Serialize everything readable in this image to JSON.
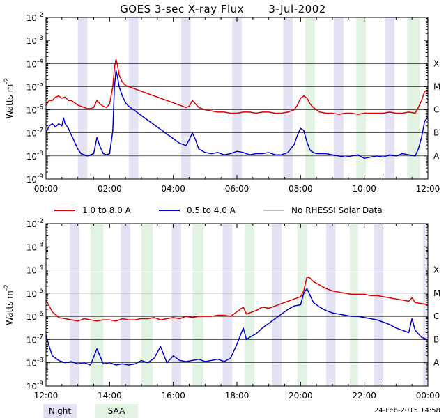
{
  "title": "GOES 3-sec X-ray Flux",
  "date": "3-Jul-2002",
  "timestamp": "24-Feb-2015 14:58",
  "colors": {
    "long": "#dd0000",
    "short": "#0000cc",
    "no_data": "#888888",
    "night": "#e3e3f3",
    "saa": "#e3f3e3",
    "grid": "#000000"
  },
  "legend": {
    "long": "1.0 to 8.0 A",
    "short": "0.5 to 4.0 A",
    "no_data": "No RHESSI Solar Data"
  },
  "bottom_legend": {
    "night": "Night",
    "saa": "SAA"
  },
  "chart_data": [
    {
      "type": "line",
      "panel": "morning",
      "title": "GOES 3-sec X-ray Flux 3-Jul-2002",
      "ylabel": "Watts m-2",
      "yscale": "log",
      "ylim_exp": [
        -9,
        -2
      ],
      "xlim_hours": [
        0,
        12
      ],
      "x_ticks": [
        "00:00",
        "02:00",
        "04:00",
        "06:00",
        "08:00",
        "10:00",
        "12:00"
      ],
      "y_ticks": [
        {
          "base": "10",
          "exp": "-9"
        },
        {
          "base": "10",
          "exp": "-8"
        },
        {
          "base": "10",
          "exp": "-7"
        },
        {
          "base": "10",
          "exp": "-6"
        },
        {
          "base": "10",
          "exp": "-5"
        },
        {
          "base": "10",
          "exp": "-4"
        },
        {
          "base": "10",
          "exp": "-3"
        },
        {
          "base": "10",
          "exp": "-2"
        }
      ],
      "flare_classes": [
        {
          "label": "A",
          "exp": -8
        },
        {
          "label": "B",
          "exp": -7
        },
        {
          "label": "C",
          "exp": -6
        },
        {
          "label": "M",
          "exp": -5
        },
        {
          "label": "X",
          "exp": -4
        }
      ],
      "night": [
        [
          1.0,
          1.3
        ],
        [
          2.6,
          2.9
        ],
        [
          4.25,
          4.55
        ],
        [
          5.85,
          6.15
        ],
        [
          7.45,
          7.75
        ],
        [
          9.05,
          9.35
        ],
        [
          10.65,
          10.95
        ]
      ],
      "saa": [
        [
          8.15,
          8.45
        ],
        [
          9.75,
          10.05
        ],
        [
          11.35,
          11.75
        ]
      ],
      "series": [
        {
          "name": "1.0 to 8.0 A",
          "key": "long",
          "x": [
            0.0,
            0.1,
            0.2,
            0.3,
            0.4,
            0.5,
            0.6,
            0.7,
            0.8,
            0.9,
            1.0,
            1.1,
            1.2,
            1.3,
            1.4,
            1.5,
            1.6,
            1.7,
            1.8,
            1.9,
            2.0,
            2.1,
            2.15,
            2.2,
            2.25,
            2.3,
            2.4,
            2.5,
            2.6,
            2.7,
            2.8,
            3.0,
            3.2,
            3.4,
            3.6,
            3.8,
            4.0,
            4.2,
            4.4,
            4.5,
            4.6,
            4.7,
            4.8,
            5.0,
            5.2,
            5.4,
            5.6,
            5.8,
            6.0,
            6.2,
            6.4,
            6.6,
            6.8,
            7.0,
            7.2,
            7.4,
            7.6,
            7.8,
            7.9,
            8.0,
            8.1,
            8.2,
            8.3,
            8.4,
            8.5,
            8.6,
            8.8,
            9.0,
            9.2,
            9.4,
            9.6,
            9.8,
            10.0,
            10.2,
            10.4,
            10.6,
            10.8,
            11.0,
            11.2,
            11.4,
            11.6,
            11.7,
            11.8,
            11.9,
            12.0
          ],
          "values_exp": [
            -5.8,
            -5.6,
            -5.6,
            -5.45,
            -5.4,
            -5.5,
            -5.45,
            -5.6,
            -5.6,
            -5.7,
            -5.8,
            -5.85,
            -5.9,
            -5.95,
            -5.95,
            -5.9,
            -5.6,
            -5.75,
            -5.85,
            -5.9,
            -5.75,
            -5.0,
            -4.2,
            -3.8,
            -4.1,
            -4.5,
            -4.8,
            -4.95,
            -5.0,
            -5.05,
            -5.1,
            -5.2,
            -5.3,
            -5.4,
            -5.5,
            -5.6,
            -5.7,
            -5.8,
            -5.9,
            -5.85,
            -5.6,
            -5.75,
            -5.9,
            -6.0,
            -6.05,
            -6.1,
            -6.1,
            -6.15,
            -6.15,
            -6.1,
            -6.1,
            -6.15,
            -6.1,
            -6.1,
            -6.15,
            -6.15,
            -6.1,
            -6.0,
            -5.8,
            -5.5,
            -5.4,
            -5.5,
            -5.75,
            -5.9,
            -6.0,
            -6.1,
            -6.15,
            -6.15,
            -6.2,
            -6.15,
            -6.15,
            -6.2,
            -6.15,
            -6.15,
            -6.15,
            -6.15,
            -6.1,
            -6.15,
            -6.15,
            -6.1,
            -6.15,
            -5.9,
            -5.6,
            -5.2,
            -5.15
          ]
        },
        {
          "name": "0.5 to 4.0 A",
          "key": "short",
          "x": [
            0.0,
            0.1,
            0.2,
            0.3,
            0.4,
            0.5,
            0.55,
            0.6,
            0.7,
            0.8,
            0.9,
            1.0,
            1.1,
            1.2,
            1.3,
            1.4,
            1.5,
            1.6,
            1.7,
            1.8,
            1.9,
            2.0,
            2.1,
            2.15,
            2.2,
            2.25,
            2.3,
            2.4,
            2.5,
            2.6,
            2.7,
            2.8,
            3.0,
            3.2,
            3.4,
            3.6,
            3.8,
            4.0,
            4.2,
            4.4,
            4.5,
            4.6,
            4.7,
            4.8,
            5.0,
            5.2,
            5.4,
            5.6,
            5.8,
            6.0,
            6.2,
            6.4,
            6.6,
            6.8,
            7.0,
            7.2,
            7.4,
            7.6,
            7.8,
            7.9,
            8.0,
            8.1,
            8.2,
            8.3,
            8.4,
            8.5,
            8.6,
            8.8,
            9.0,
            9.2,
            9.4,
            9.6,
            9.8,
            10.0,
            10.2,
            10.4,
            10.6,
            10.8,
            11.0,
            11.2,
            11.4,
            11.6,
            11.7,
            11.8,
            11.9,
            12.0
          ],
          "values_exp": [
            -7.0,
            -6.7,
            -6.6,
            -6.75,
            -6.6,
            -6.7,
            -6.35,
            -6.6,
            -6.8,
            -7.1,
            -7.4,
            -7.7,
            -7.9,
            -7.95,
            -8.0,
            -7.95,
            -7.9,
            -7.2,
            -7.6,
            -7.9,
            -7.95,
            -7.9,
            -6.9,
            -5.0,
            -4.3,
            -4.6,
            -5.0,
            -5.4,
            -5.7,
            -5.85,
            -5.95,
            -6.05,
            -6.25,
            -6.45,
            -6.65,
            -6.85,
            -7.05,
            -7.25,
            -7.45,
            -7.55,
            -7.3,
            -7.0,
            -7.3,
            -7.7,
            -7.85,
            -7.9,
            -7.85,
            -7.95,
            -7.9,
            -7.8,
            -7.85,
            -7.95,
            -7.9,
            -7.9,
            -7.85,
            -7.95,
            -7.95,
            -7.85,
            -7.5,
            -7.1,
            -6.8,
            -6.9,
            -7.4,
            -7.75,
            -7.85,
            -7.9,
            -7.9,
            -7.9,
            -7.95,
            -8.0,
            -8.05,
            -8.0,
            -7.95,
            -8.1,
            -8.05,
            -8.0,
            -8.05,
            -7.95,
            -8.0,
            -7.9,
            -7.95,
            -8.0,
            -7.7,
            -7.2,
            -6.5,
            -6.3
          ]
        }
      ]
    },
    {
      "type": "line",
      "panel": "afternoon",
      "ylabel": "Watts m-2",
      "yscale": "log",
      "ylim_exp": [
        -9,
        -2
      ],
      "xlim_hours": [
        12,
        24
      ],
      "x_ticks": [
        "12:00",
        "14:00",
        "16:00",
        "18:00",
        "20:00",
        "22:00",
        "00:00"
      ],
      "y_ticks": [
        {
          "base": "10",
          "exp": "-9"
        },
        {
          "base": "10",
          "exp": "-8"
        },
        {
          "base": "10",
          "exp": "-7"
        },
        {
          "base": "10",
          "exp": "-6"
        },
        {
          "base": "10",
          "exp": "-5"
        },
        {
          "base": "10",
          "exp": "-4"
        },
        {
          "base": "10",
          "exp": "-3"
        },
        {
          "base": "10",
          "exp": "-2"
        }
      ],
      "flare_classes": [
        {
          "label": "A",
          "exp": -8
        },
        {
          "label": "B",
          "exp": -7
        },
        {
          "label": "C",
          "exp": -6
        },
        {
          "label": "M",
          "exp": -5
        },
        {
          "label": "X",
          "exp": -4
        }
      ],
      "night": [
        [
          12.75,
          13.05
        ],
        [
          14.35,
          14.65
        ],
        [
          15.95,
          16.25
        ],
        [
          17.55,
          17.85
        ],
        [
          19.1,
          19.4
        ],
        [
          20.8,
          21.1
        ],
        [
          22.3,
          22.6
        ],
        [
          23.85,
          24.0
        ]
      ],
      "saa": [
        [
          13.4,
          13.8
        ],
        [
          15.0,
          15.35
        ],
        [
          16.6,
          16.95
        ],
        [
          18.25,
          18.55
        ],
        [
          19.9,
          20.2
        ],
        [
          21.55,
          21.8
        ]
      ],
      "series": [
        {
          "name": "1.0 to 8.0 A",
          "key": "long",
          "x": [
            12.0,
            12.1,
            12.2,
            12.4,
            12.6,
            12.8,
            13.0,
            13.2,
            13.4,
            13.6,
            13.8,
            14.0,
            14.2,
            14.4,
            14.6,
            14.8,
            15.0,
            15.2,
            15.4,
            15.6,
            15.8,
            16.0,
            16.2,
            16.4,
            16.6,
            16.8,
            17.0,
            17.2,
            17.4,
            17.6,
            17.8,
            18.0,
            18.2,
            18.3,
            18.4,
            18.6,
            18.8,
            19.0,
            19.2,
            19.4,
            19.6,
            19.8,
            20.0,
            20.1,
            20.2,
            20.3,
            20.4,
            20.6,
            20.8,
            21.0,
            21.2,
            21.4,
            21.6,
            21.8,
            22.0,
            22.2,
            22.4,
            22.6,
            22.8,
            23.0,
            23.2,
            23.4,
            23.5,
            23.6,
            23.8,
            24.0
          ],
          "values_exp": [
            -5.3,
            -5.55,
            -5.8,
            -6.05,
            -6.1,
            -6.15,
            -6.2,
            -6.1,
            -6.15,
            -6.2,
            -6.15,
            -6.15,
            -6.2,
            -6.1,
            -6.15,
            -6.15,
            -6.1,
            -6.1,
            -6.05,
            -6.15,
            -6.1,
            -6.05,
            -6.1,
            -6.0,
            -6.05,
            -6.0,
            -6.0,
            -6.0,
            -5.95,
            -5.95,
            -6.0,
            -5.8,
            -5.6,
            -5.9,
            -5.85,
            -5.75,
            -5.6,
            -5.65,
            -5.55,
            -5.45,
            -5.35,
            -5.25,
            -5.15,
            -4.9,
            -4.3,
            -4.35,
            -4.5,
            -4.65,
            -4.8,
            -4.9,
            -4.95,
            -5.0,
            -5.05,
            -5.05,
            -5.05,
            -5.1,
            -5.1,
            -5.15,
            -5.2,
            -5.25,
            -5.3,
            -5.35,
            -5.2,
            -5.4,
            -5.45,
            -5.5
          ]
        },
        {
          "name": "0.5 to 4.0 A",
          "key": "short",
          "x": [
            12.0,
            12.1,
            12.2,
            12.4,
            12.6,
            12.8,
            13.0,
            13.2,
            13.4,
            13.6,
            13.8,
            14.0,
            14.2,
            14.4,
            14.6,
            14.8,
            15.0,
            15.2,
            15.4,
            15.6,
            15.8,
            16.0,
            16.2,
            16.4,
            16.6,
            16.8,
            17.0,
            17.2,
            17.4,
            17.6,
            17.8,
            18.0,
            18.2,
            18.3,
            18.4,
            18.6,
            18.8,
            19.0,
            19.2,
            19.4,
            19.6,
            19.8,
            20.0,
            20.1,
            20.2,
            20.3,
            20.4,
            20.6,
            20.8,
            21.0,
            21.2,
            21.4,
            21.6,
            21.8,
            22.0,
            22.2,
            22.4,
            22.6,
            22.8,
            23.0,
            23.2,
            23.4,
            23.5,
            23.6,
            23.8,
            24.0
          ],
          "values_exp": [
            -6.8,
            -7.3,
            -7.7,
            -7.9,
            -8.0,
            -7.95,
            -8.05,
            -8.0,
            -8.1,
            -7.4,
            -8.05,
            -8.0,
            -8.1,
            -8.05,
            -8.1,
            -8.05,
            -7.9,
            -8.0,
            -7.8,
            -7.3,
            -8.0,
            -7.7,
            -7.9,
            -7.95,
            -7.9,
            -7.85,
            -7.95,
            -7.9,
            -7.85,
            -7.95,
            -7.8,
            -7.2,
            -6.5,
            -7.0,
            -6.9,
            -6.75,
            -6.5,
            -6.3,
            -6.1,
            -5.9,
            -5.7,
            -5.55,
            -5.5,
            -5.0,
            -4.8,
            -5.1,
            -5.4,
            -5.6,
            -5.75,
            -5.85,
            -5.9,
            -5.95,
            -6.0,
            -6.0,
            -6.05,
            -6.1,
            -6.15,
            -6.25,
            -6.35,
            -6.5,
            -6.6,
            -6.7,
            -6.1,
            -6.6,
            -6.9,
            -7.0
          ]
        }
      ]
    }
  ]
}
